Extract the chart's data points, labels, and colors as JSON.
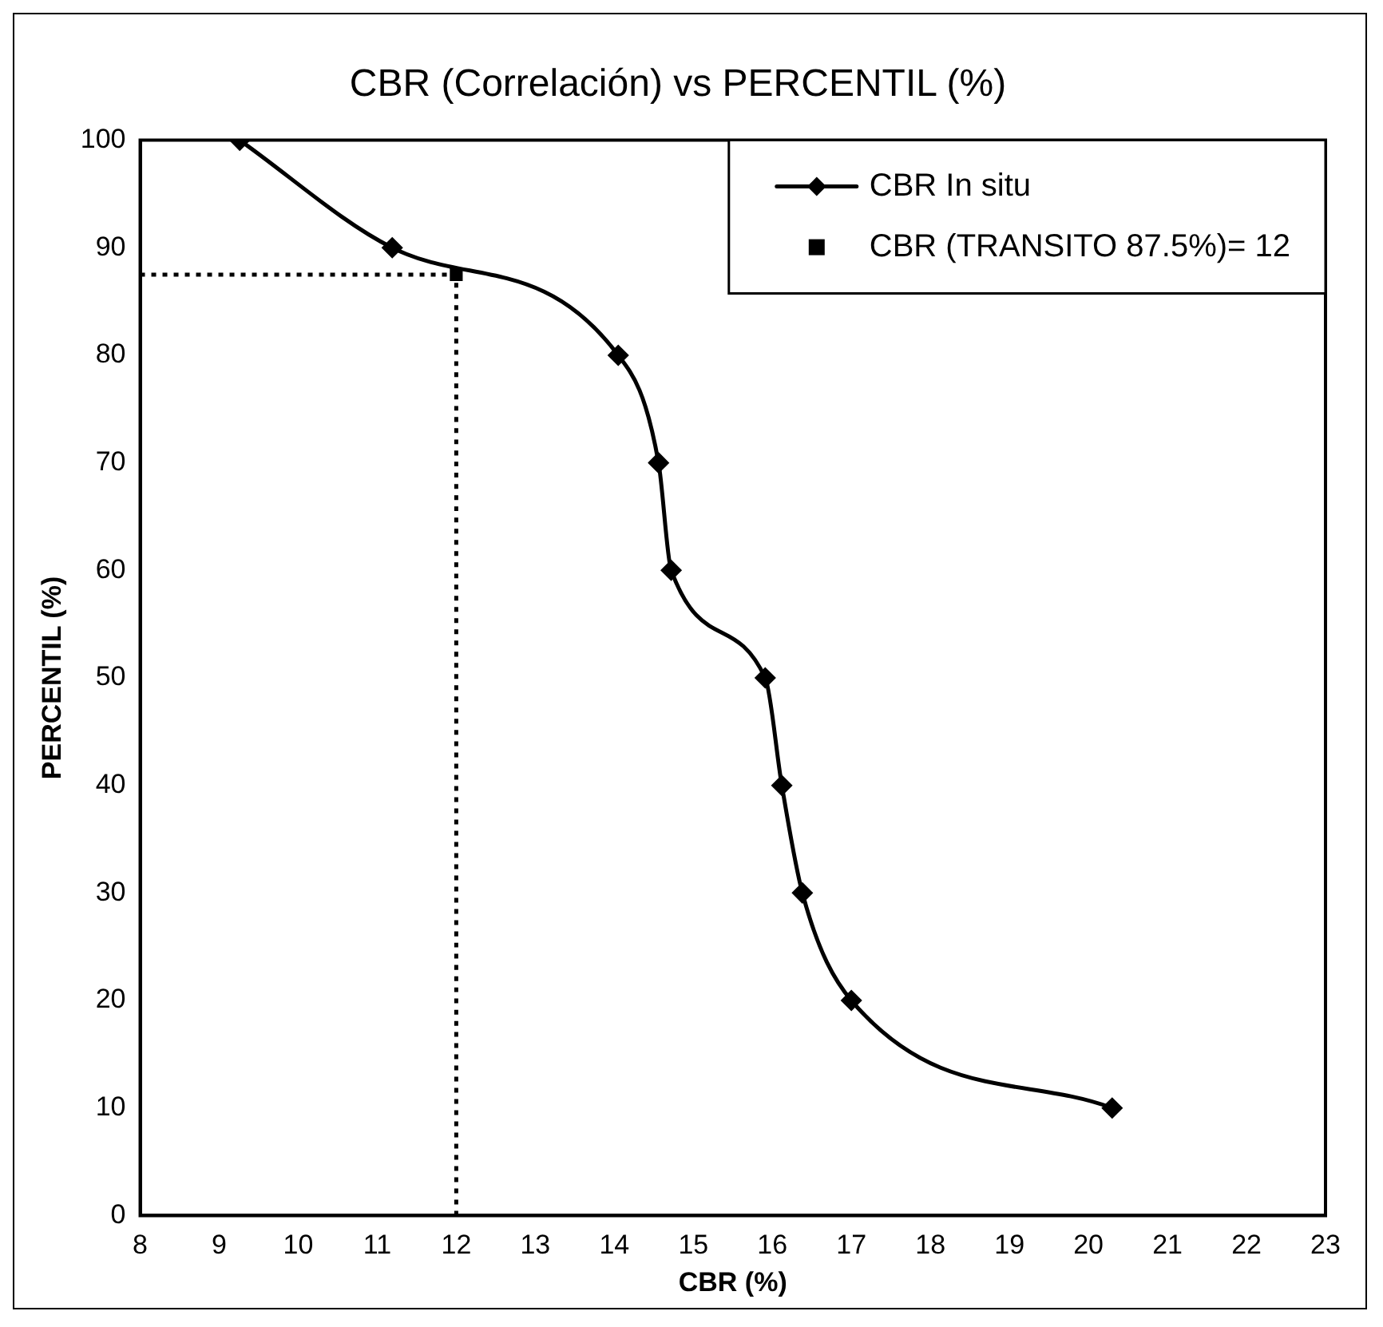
{
  "chart_data": {
    "type": "line",
    "title": "CBR (Correlación) vs PERCENTIL (%)",
    "xlabel": "CBR (%)",
    "ylabel": "PERCENTIL (%)",
    "xlim": [
      8,
      23
    ],
    "xticks": [
      8,
      9,
      10,
      11,
      12,
      13,
      14,
      15,
      16,
      17,
      18,
      19,
      20,
      21,
      22,
      23
    ],
    "ylim": [
      0,
      100
    ],
    "yticks": [
      0,
      10,
      20,
      30,
      40,
      50,
      60,
      70,
      80,
      90,
      100
    ],
    "grid": false,
    "legend": "top right",
    "series": [
      {
        "name": "CBR In situ",
        "color": "#000000",
        "marker": "diamond",
        "line_style": "solid",
        "x": [
          9.26,
          11.19,
          14.05,
          14.56,
          14.72,
          15.91,
          16.12,
          16.38,
          17.0,
          20.3
        ],
        "values": [
          100,
          90,
          80,
          70,
          60,
          50,
          40,
          30,
          20,
          10
        ]
      },
      {
        "name": "CBR (TRANSITO 87.5%)= 12",
        "type": "scatter",
        "color": "#000000",
        "marker": "square",
        "x": [
          12
        ],
        "values": [
          87.5
        ]
      },
      {
        "color": "#000000",
        "marker": "none",
        "line_style": "dotted",
        "x": [
          8,
          12
        ],
        "values": [
          87.5,
          87.5
        ]
      },
      {
        "color": "#000000",
        "marker": "none",
        "line_style": "dotted",
        "x": [
          12,
          12
        ],
        "values": [
          0,
          87.5
        ]
      }
    ]
  }
}
